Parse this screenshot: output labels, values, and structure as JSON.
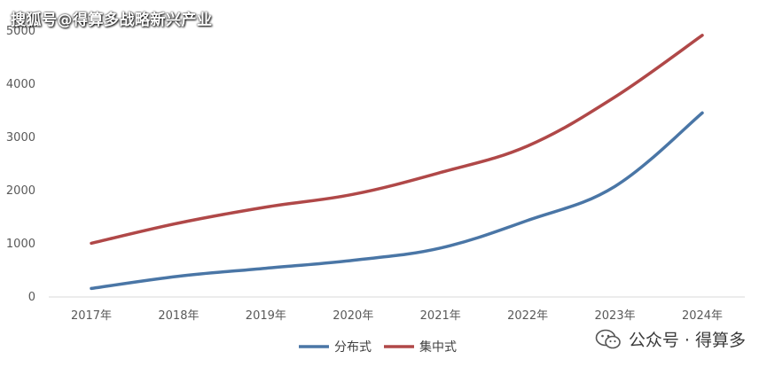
{
  "watermark": {
    "top_text": "搜狐号@得算多战略新兴产业",
    "bottom_text": "公众号 · 得算多"
  },
  "chart_data": {
    "type": "line",
    "categories": [
      "2017年",
      "2018年",
      "2019年",
      "2020年",
      "2021年",
      "2022年",
      "2023年",
      "2024年"
    ],
    "series": [
      {
        "name": "分布式",
        "color": "#4a76a6",
        "values": [
          160,
          390,
          540,
          690,
          920,
          1440,
          2080,
          3460
        ]
      },
      {
        "name": "集中式",
        "color": "#b04848",
        "values": [
          1010,
          1390,
          1690,
          1930,
          2340,
          2840,
          3760,
          4920
        ]
      }
    ],
    "ylim": [
      0,
      5000
    ],
    "yticks": [
      "0",
      "1000",
      "2000",
      "3000",
      "4000",
      "5000"
    ],
    "grid": false,
    "legend": "bottom"
  }
}
